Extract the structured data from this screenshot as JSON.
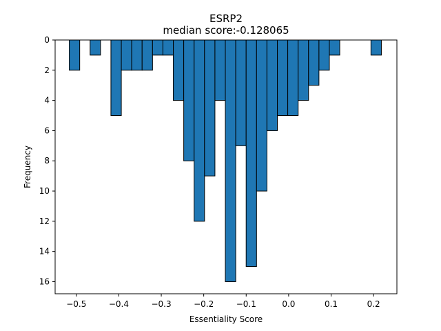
{
  "chart_data": {
    "type": "bar",
    "title": "ESRP2",
    "subtitle": "median score:-0.128065",
    "xlabel": "Essentiality Score",
    "ylabel": "Frequency",
    "xlim": [
      -0.55,
      0.255
    ],
    "ylim": [
      0,
      16.8
    ],
    "y_inverted": true,
    "bin_width": 0.0245,
    "bar_color": "#1f77b4",
    "edge_color": "#000000",
    "grid": false,
    "xticks": [
      -0.5,
      -0.4,
      -0.3,
      -0.2,
      -0.1,
      0.0,
      0.1,
      0.2
    ],
    "xtick_labels": [
      "−0.5",
      "−0.4",
      "−0.3",
      "−0.2",
      "−0.1",
      "0.0",
      "0.1",
      "0.2"
    ],
    "yticks": [
      0,
      2,
      4,
      6,
      8,
      10,
      12,
      14,
      16
    ],
    "ytick_labels": [
      "0",
      "2",
      "4",
      "6",
      "8",
      "10",
      "12",
      "14",
      "16"
    ],
    "bins": [
      {
        "x0": -0.5166,
        "count": 2
      },
      {
        "x0": -0.4921,
        "count": 0
      },
      {
        "x0": -0.4676,
        "count": 1
      },
      {
        "x0": -0.4431,
        "count": 0
      },
      {
        "x0": -0.4186,
        "count": 5
      },
      {
        "x0": -0.3941,
        "count": 2
      },
      {
        "x0": -0.3696,
        "count": 2
      },
      {
        "x0": -0.3451,
        "count": 2
      },
      {
        "x0": -0.3206,
        "count": 1
      },
      {
        "x0": -0.2961,
        "count": 1
      },
      {
        "x0": -0.2716,
        "count": 4
      },
      {
        "x0": -0.2471,
        "count": 8
      },
      {
        "x0": -0.2226,
        "count": 12
      },
      {
        "x0": -0.1981,
        "count": 9
      },
      {
        "x0": -0.1736,
        "count": 4
      },
      {
        "x0": -0.1491,
        "count": 16
      },
      {
        "x0": -0.1246,
        "count": 7
      },
      {
        "x0": -0.1001,
        "count": 15
      },
      {
        "x0": -0.0756,
        "count": 10
      },
      {
        "x0": -0.0511,
        "count": 6
      },
      {
        "x0": -0.0266,
        "count": 5
      },
      {
        "x0": -0.0021,
        "count": 5
      },
      {
        "x0": 0.0224,
        "count": 4
      },
      {
        "x0": 0.0469,
        "count": 3
      },
      {
        "x0": 0.0714,
        "count": 2
      },
      {
        "x0": 0.0959,
        "count": 1
      },
      {
        "x0": 0.1204,
        "count": 0
      },
      {
        "x0": 0.1449,
        "count": 0
      },
      {
        "x0": 0.1694,
        "count": 0
      },
      {
        "x0": 0.1939,
        "count": 1
      }
    ]
  }
}
